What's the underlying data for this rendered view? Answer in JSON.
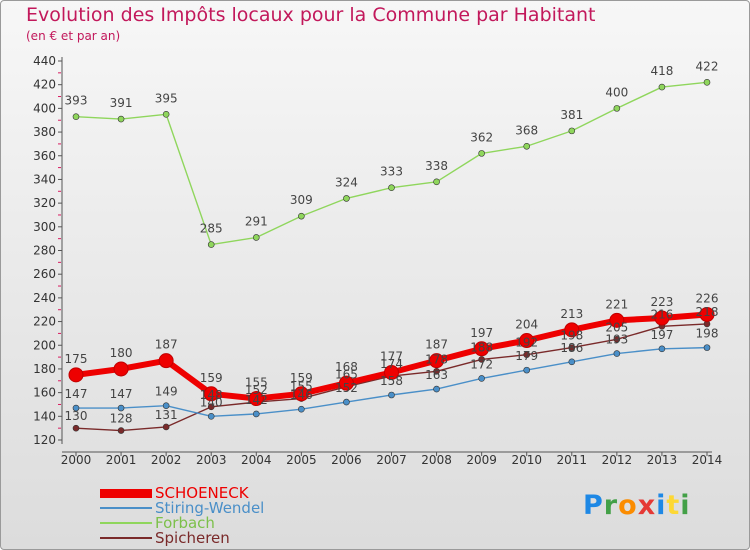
{
  "header": {
    "title": "Evolution des Impôts locaux pour la Commune par Habitant",
    "subtitle": "(en € et par an)"
  },
  "logo": {
    "text": "Proxiti",
    "colors": [
      "#1e88e5",
      "#43a047",
      "#fb8c00",
      "#e53935",
      "#1e88e5",
      "#fdd835",
      "#43a047"
    ]
  },
  "chart_data": {
    "type": "line",
    "title": "Evolution des Impôts locaux pour la Commune par Habitant",
    "subtitle": "(en € et par an)",
    "xlabel": "",
    "ylabel": "",
    "ylim": [
      120,
      440
    ],
    "yticks": [
      120,
      140,
      160,
      180,
      200,
      220,
      240,
      260,
      280,
      300,
      320,
      340,
      360,
      380,
      400,
      420,
      440
    ],
    "ytick_labels": [
      "120",
      "140",
      "160",
      "180",
      "200",
      "220",
      "240",
      "260",
      "280",
      "300",
      "320",
      "340",
      "360",
      "380",
      "400",
      "420",
      "440"
    ],
    "categories": [
      "2000",
      "2001",
      "2002",
      "2003",
      "2004",
      "2005",
      "2006",
      "2007",
      "2008",
      "2009",
      "2010",
      "2011",
      "2012",
      "2013",
      "2014"
    ],
    "grid": false,
    "legend_position": "bottom-left",
    "series": [
      {
        "name": "SCHOENECK",
        "color": "#ee0000",
        "values": [
          175,
          180,
          187,
          159,
          155,
          159,
          168,
          177,
          187,
          197,
          204,
          213,
          221,
          223,
          226
        ],
        "labels": [
          "175",
          "180",
          "187",
          "159",
          "155",
          "159",
          "168",
          "177",
          "187",
          "197",
          "204",
          "213",
          "221",
          "223",
          "226"
        ]
      },
      {
        "name": "Stiring-Wendel",
        "color": "#4a8fc8",
        "values": [
          147,
          147,
          149,
          140,
          142,
          146,
          152,
          158,
          163,
          172,
          179,
          186,
          193,
          197,
          198
        ],
        "labels": [
          "147",
          "147",
          "149",
          "140",
          "142",
          "146",
          "152",
          "158",
          "163",
          "172",
          "179",
          "186",
          "193",
          "197",
          "198"
        ]
      },
      {
        "name": "Forbach",
        "color": "#8fd65c",
        "values": [
          393,
          391,
          395,
          285,
          291,
          309,
          324,
          333,
          338,
          362,
          368,
          381,
          400,
          418,
          422
        ],
        "labels": [
          "393",
          "391",
          "395",
          "285",
          "291",
          "309",
          "324",
          "333",
          "338",
          "362",
          "368",
          "381",
          "400",
          "418",
          "422"
        ]
      },
      {
        "name": "Spicheren",
        "color": "#7a2a2a",
        "values": [
          130,
          128,
          131,
          148,
          152,
          155,
          165,
          174,
          178,
          188,
          192,
          198,
          205,
          216,
          218
        ],
        "labels": [
          "130",
          "128",
          "131",
          "148",
          "152",
          "155",
          "165",
          "174",
          "178",
          "188",
          "192",
          "198",
          "205",
          "216",
          "218"
        ]
      }
    ]
  }
}
